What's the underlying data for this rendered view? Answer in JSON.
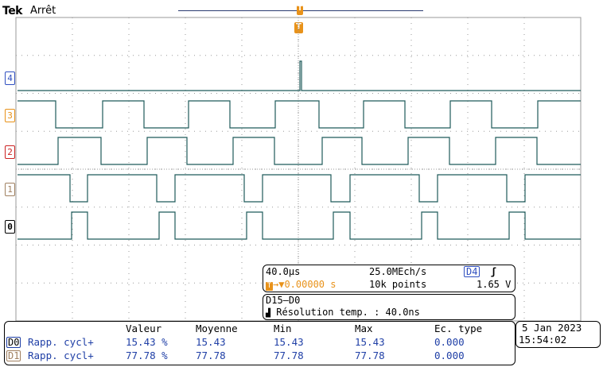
{
  "header": {
    "brand": "Tek",
    "acq_state": "Arrêt",
    "trigger_marker": "T"
  },
  "channels": [
    {
      "label": "4",
      "color": "#3050c0"
    },
    {
      "label": "3",
      "color": "#e8921a"
    },
    {
      "label": "2",
      "color": "#cc2222"
    },
    {
      "label": "1",
      "color": "#a08060"
    },
    {
      "label": "0",
      "color": "#000000"
    }
  ],
  "colors": {
    "trace": "#1e5a5a",
    "grid": "#9a9a9a",
    "accent_trigger": "#e8921a",
    "measure_value": "#1f3fa6"
  },
  "timebase": {
    "scale": "40.0µs",
    "sample_rate": "25.0MEch/s",
    "trigger_source": "D4",
    "trigger_slope_icon": "rising-edge-icon",
    "trigger_offset": "▼0.00000 s",
    "record_length": "10k points",
    "trigger_level": "1.65 V"
  },
  "bus": {
    "name": "D15–D0",
    "resolution_label": "Résolution temp. : 40.0ns"
  },
  "measurements": {
    "headers": [
      "Valeur",
      "Moyenne",
      "Min",
      "Max",
      "Ec. type"
    ],
    "rows": [
      {
        "source": "D0",
        "name": "Rapp. cycl+",
        "value": "15.43 %",
        "mean": "15.43",
        "min": "15.43",
        "max": "15.43",
        "std": "0.000"
      },
      {
        "source": "D1",
        "name": "Rapp. cycl+",
        "value": "77.78 %",
        "mean": "77.78",
        "min": "77.78",
        "max": "77.78",
        "std": "0.000"
      }
    ]
  },
  "datetime": {
    "date": "5 Jan 2023",
    "time": "15:54:02"
  }
}
